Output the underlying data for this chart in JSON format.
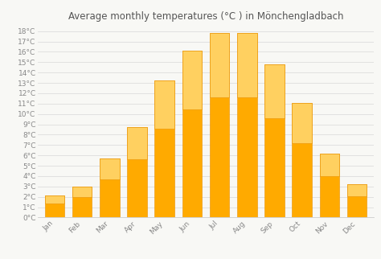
{
  "title": "Average monthly temperatures (°C ) in Mönchengladbach",
  "months": [
    "Jan",
    "Feb",
    "Mar",
    "Apr",
    "May",
    "Jun",
    "Jul",
    "Aug",
    "Sep",
    "Oct",
    "Nov",
    "Dec"
  ],
  "values": [
    2.1,
    3.0,
    5.7,
    8.7,
    13.2,
    16.1,
    17.8,
    17.8,
    14.8,
    11.1,
    6.2,
    3.2
  ],
  "bar_color": "#FFAA00",
  "bar_color_top": "#FFD060",
  "bar_edge_color": "#E89000",
  "ylim": [
    0,
    18.5
  ],
  "yticks": [
    0,
    1,
    2,
    3,
    4,
    5,
    6,
    7,
    8,
    9,
    10,
    11,
    12,
    13,
    14,
    15,
    16,
    17,
    18
  ],
  "ytick_labels": [
    "0°C",
    "1°C",
    "2°C",
    "3°C",
    "4°C",
    "5°C",
    "6°C",
    "7°C",
    "8°C",
    "9°C",
    "10°C",
    "11°C",
    "12°C",
    "13°C",
    "14°C",
    "15°C",
    "16°C",
    "17°C",
    "18°C"
  ],
  "background_color": "#f8f8f5",
  "grid_color": "#dddddd",
  "title_fontsize": 8.5,
  "tick_fontsize": 6.5,
  "title_color": "#555555",
  "tick_color": "#888888",
  "bar_width": 0.72
}
